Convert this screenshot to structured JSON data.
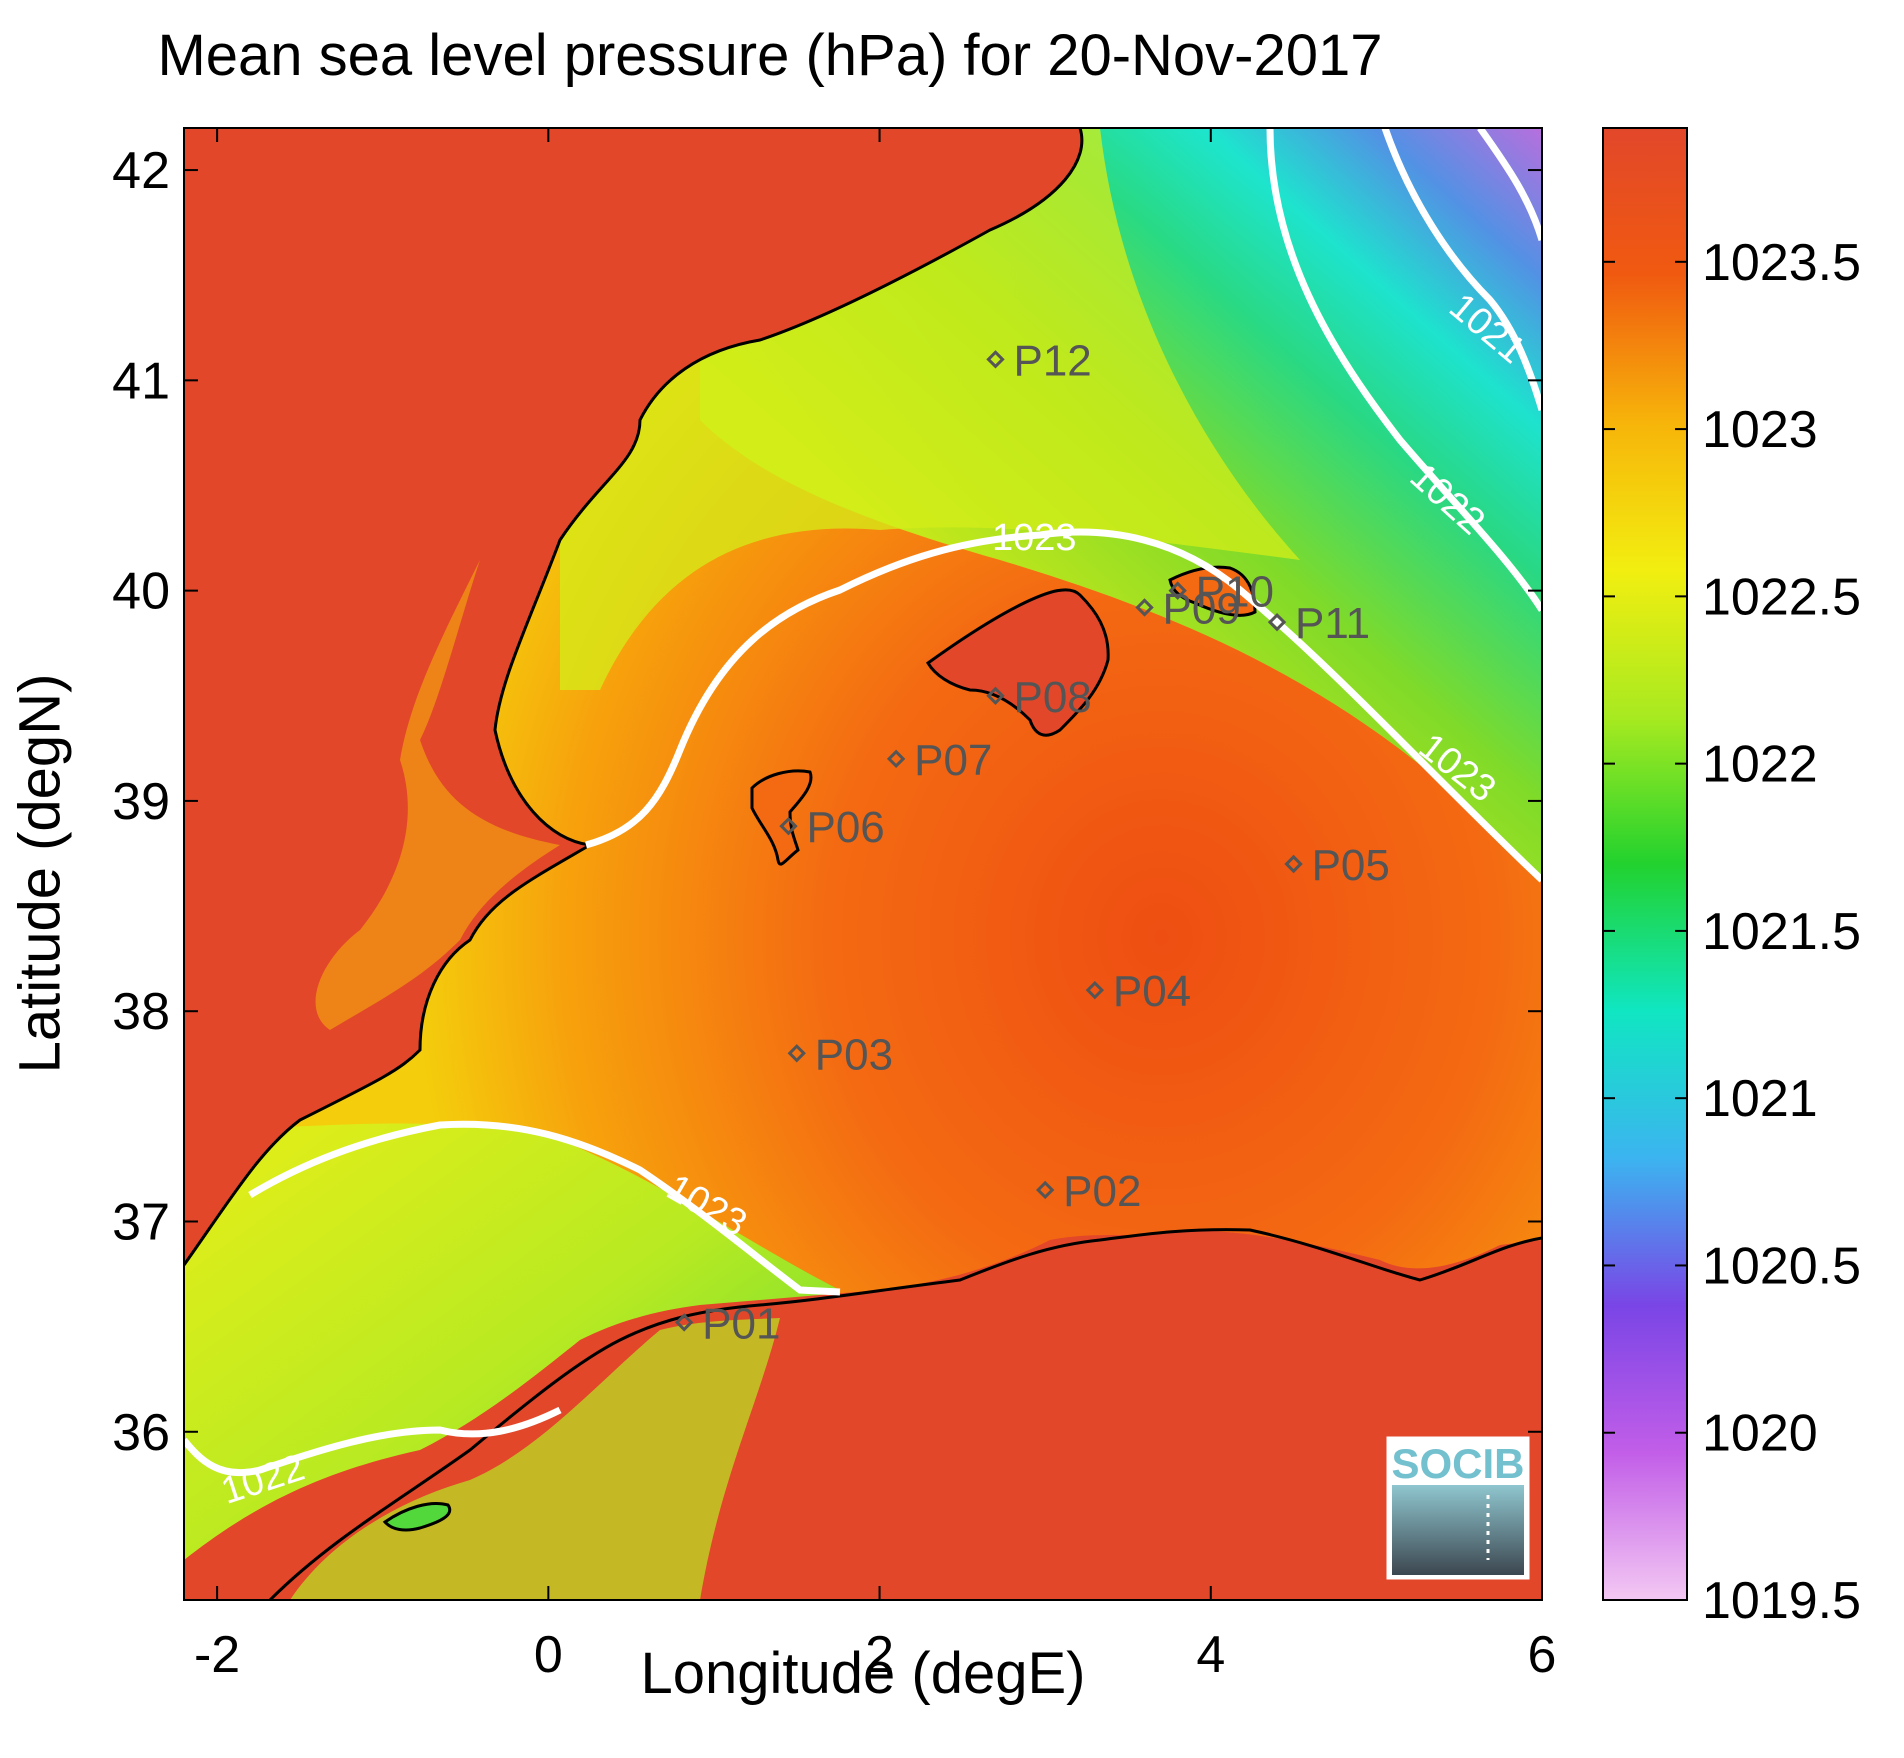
{
  "title": "Mean sea level pressure (hPa) for 20-Nov-2017",
  "x_axis": {
    "label": "Longitude (degE)",
    "range": [
      -2.2,
      6.0
    ],
    "ticks": [
      "-2",
      "0",
      "2",
      "4",
      "6"
    ],
    "tick_values": [
      -2,
      0,
      2,
      4,
      6
    ]
  },
  "y_axis": {
    "label": "Latitude (degN)",
    "range": [
      35.2,
      42.2
    ],
    "ticks": [
      "36",
      "37",
      "38",
      "39",
      "40",
      "41",
      "42"
    ],
    "tick_values": [
      36,
      37,
      38,
      39,
      40,
      41,
      42
    ]
  },
  "colorbar": {
    "range": [
      1019.5,
      1023.9
    ],
    "ticks": [
      "1019.5",
      "1020",
      "1020.5",
      "1021",
      "1021.5",
      "1022",
      "1022.5",
      "1023",
      "1023.5"
    ],
    "tick_values": [
      1019.5,
      1020,
      1020.5,
      1021,
      1021.5,
      1022,
      1022.5,
      1023,
      1023.5
    ],
    "colors": [
      "#f3c8f3",
      "#c25ee8",
      "#7a45e6",
      "#3cb4f0",
      "#10e6c2",
      "#22d22e",
      "#a8ea20",
      "#f2ee10",
      "#f7b40a",
      "#f05a10",
      "#e2472a"
    ]
  },
  "contour_labels": [
    "1023",
    "1023",
    "1023",
    "1022",
    "1021",
    "1022"
  ],
  "stations": [
    {
      "id": "P01",
      "lon": 0.82,
      "lat": 36.52
    },
    {
      "id": "P02",
      "lon": 3.0,
      "lat": 37.15
    },
    {
      "id": "P03",
      "lon": 1.5,
      "lat": 37.8
    },
    {
      "id": "P04",
      "lon": 3.3,
      "lat": 38.1
    },
    {
      "id": "P05",
      "lon": 4.5,
      "lat": 38.7
    },
    {
      "id": "P06",
      "lon": 1.45,
      "lat": 38.88
    },
    {
      "id": "P07",
      "lon": 2.1,
      "lat": 39.2
    },
    {
      "id": "P08",
      "lon": 2.7,
      "lat": 39.5
    },
    {
      "id": "P09",
      "lon": 3.6,
      "lat": 39.92
    },
    {
      "id": "P10",
      "lon": 3.8,
      "lat": 40.0
    },
    {
      "id": "P11",
      "lon": 4.4,
      "lat": 39.85
    },
    {
      "id": "P12",
      "lon": 2.7,
      "lat": 41.1
    }
  ],
  "logo": {
    "text": "SOCIB"
  },
  "colors": {
    "land": "#e2472a",
    "contour": "#ffffff",
    "coast": "#000000",
    "station": "#555555"
  }
}
